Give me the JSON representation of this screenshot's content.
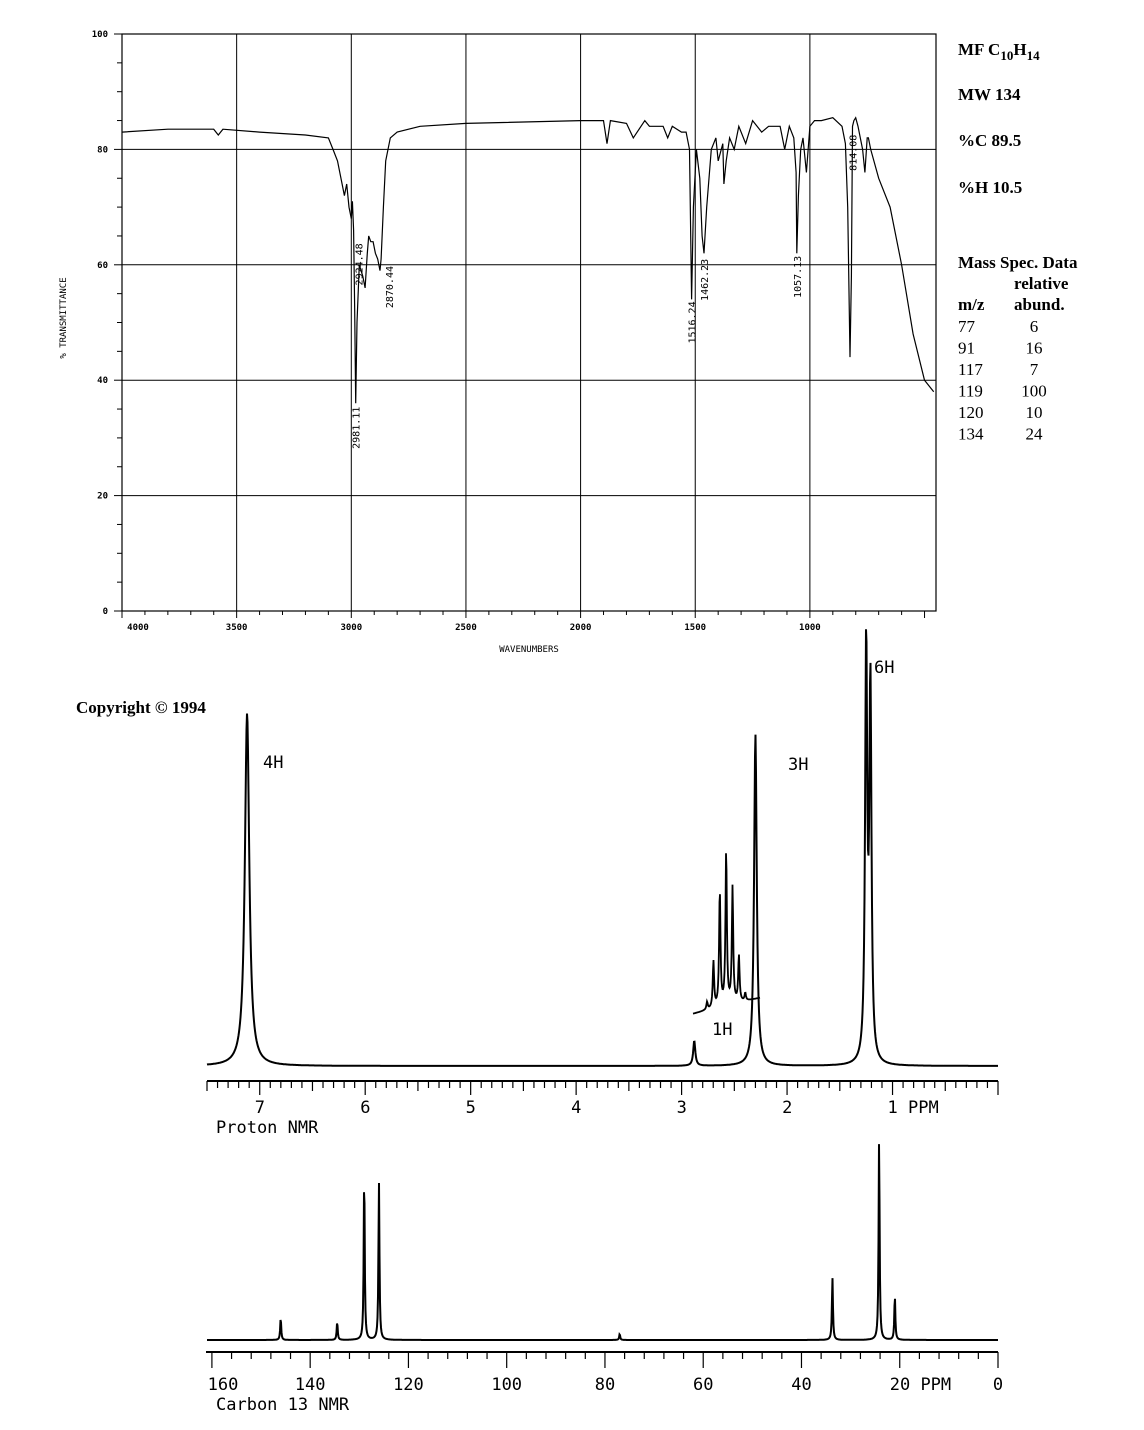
{
  "ir": {
    "y_axis_label": "% TRANSMITTANCE",
    "x_axis_label": "WAVENUMBERS",
    "y_ticks": [
      "100",
      "80",
      "60",
      "40",
      "20",
      "0"
    ],
    "x_ticks": [
      "4000",
      "3500",
      "3000",
      "2500",
      "2000",
      "1500",
      "1000"
    ],
    "peak_labels": [
      "2981.11",
      "2924.48",
      "2870.44",
      "1516.24",
      "1462.23",
      "1057.13",
      "814.08"
    ]
  },
  "info": {
    "mf_prefix": "MF C",
    "mf_sub1": "10",
    "mf_mid": "H",
    "mf_sub2": "14",
    "mw": "MW 134",
    "carbon": "%C 89.5",
    "hydrogen": "%H 10.5",
    "mass_title": "Mass Spec. Data",
    "col_relative": "relative",
    "col_mz": "m/z",
    "col_abund": "abund.",
    "mass_rows": [
      {
        "mz": "77",
        "abund": "6"
      },
      {
        "mz": "91",
        "abund": "16"
      },
      {
        "mz": "117",
        "abund": "7"
      },
      {
        "mz": "119",
        "abund": "100"
      },
      {
        "mz": "120",
        "abund": "10"
      },
      {
        "mz": "134",
        "abund": "24"
      }
    ]
  },
  "copyright": "Copyright © 1994",
  "hnmr": {
    "caption": "Proton NMR",
    "ticks": [
      "7",
      "6",
      "5",
      "4",
      "3",
      "2",
      "1 PPM"
    ],
    "integrations": [
      "4H",
      "1H",
      "3H",
      "6H"
    ]
  },
  "cnmr": {
    "caption": "Carbon 13 NMR",
    "ticks": [
      "160",
      "140",
      "120",
      "100",
      "80",
      "60",
      "40",
      "20 PPM",
      "0"
    ]
  },
  "chart_data": [
    {
      "type": "line",
      "title": "",
      "xlabel": "WAVENUMBERS",
      "ylabel": "% TRANSMITTANCE",
      "xlim": [
        4000,
        450
      ],
      "ylim": [
        0,
        100
      ],
      "grid": true,
      "x": [
        4000,
        3800,
        3600,
        3580,
        3560,
        3400,
        3200,
        3100,
        3080,
        3060,
        3040,
        3030,
        3020,
        3010,
        3000,
        2995,
        2990,
        2985,
        2981,
        2975,
        2965,
        2950,
        2940,
        2930,
        2924,
        2915,
        2905,
        2895,
        2885,
        2875,
        2870,
        2860,
        2850,
        2830,
        2800,
        2700,
        2500,
        2000,
        1900,
        1885,
        1870,
        1800,
        1770,
        1720,
        1700,
        1640,
        1620,
        1600,
        1560,
        1540,
        1525,
        1516,
        1508,
        1495,
        1480,
        1470,
        1462,
        1450,
        1430,
        1410,
        1400,
        1380,
        1375,
        1365,
        1350,
        1330,
        1310,
        1280,
        1250,
        1210,
        1180,
        1130,
        1110,
        1090,
        1070,
        1060,
        1057,
        1050,
        1040,
        1030,
        1015,
        1000,
        980,
        950,
        900,
        860,
        845,
        835,
        825,
        819,
        814,
        808,
        800,
        790,
        770,
        760,
        750,
        745,
        735,
        700,
        650,
        600,
        550,
        500,
        460
      ],
      "y": [
        83,
        83.5,
        83.5,
        82.5,
        83.5,
        83,
        82.5,
        82,
        80,
        78,
        74,
        72,
        74,
        70,
        68,
        71,
        66,
        52,
        36,
        50,
        60,
        58,
        56,
        62,
        65,
        64,
        64,
        62,
        61,
        59,
        61,
        70,
        78,
        82,
        83,
        84,
        84.5,
        85,
        85,
        81,
        85,
        84.5,
        82,
        85,
        84,
        84,
        82,
        84,
        83,
        83,
        80,
        54,
        70,
        80,
        75,
        65,
        62,
        70,
        80,
        82,
        78,
        81,
        74,
        78,
        82,
        80,
        84,
        81,
        85,
        83,
        84,
        84,
        80,
        84,
        82,
        76,
        62,
        72,
        80,
        82,
        76,
        84,
        85,
        85,
        85.5,
        84,
        81,
        70,
        44,
        58,
        84,
        85,
        85.5,
        84,
        80,
        76,
        82,
        82,
        80,
        75,
        70,
        60,
        48,
        40,
        38
      ],
      "peaks": [
        2981.11,
        2924.48,
        2870.44,
        1516.24,
        1462.23,
        1057.13,
        814.08
      ]
    },
    {
      "type": "line",
      "title": "",
      "xlabel": "PPM",
      "ylabel": "",
      "xlim": [
        7.5,
        0
      ],
      "grid": false,
      "peaks": [
        {
          "ppm": 7.12,
          "intensity": 0.85
        },
        {
          "ppm": 2.88,
          "intensity": 0.06
        },
        {
          "ppm": 2.3,
          "intensity": 0.8
        },
        {
          "ppm": 1.25,
          "intensity": 1.0
        },
        {
          "ppm": 1.21,
          "intensity": 0.9
        }
      ],
      "integrations": [
        "4H",
        "1H",
        "3H",
        "6H"
      ]
    },
    {
      "type": "line",
      "title": "",
      "xlabel": "PPM",
      "ylabel": "",
      "xlim": [
        161,
        0
      ],
      "grid": false,
      "peaks": [
        {
          "ppm": 146.0,
          "intensity": 0.11
        },
        {
          "ppm": 134.5,
          "intensity": 0.09
        },
        {
          "ppm": 129.0,
          "intensity": 0.83
        },
        {
          "ppm": 126.0,
          "intensity": 0.78
        },
        {
          "ppm": 77.0,
          "intensity": 0.03
        },
        {
          "ppm": 33.7,
          "intensity": 0.31
        },
        {
          "ppm": 24.2,
          "intensity": 1.0
        },
        {
          "ppm": 21.0,
          "intensity": 0.22
        }
      ]
    }
  ]
}
